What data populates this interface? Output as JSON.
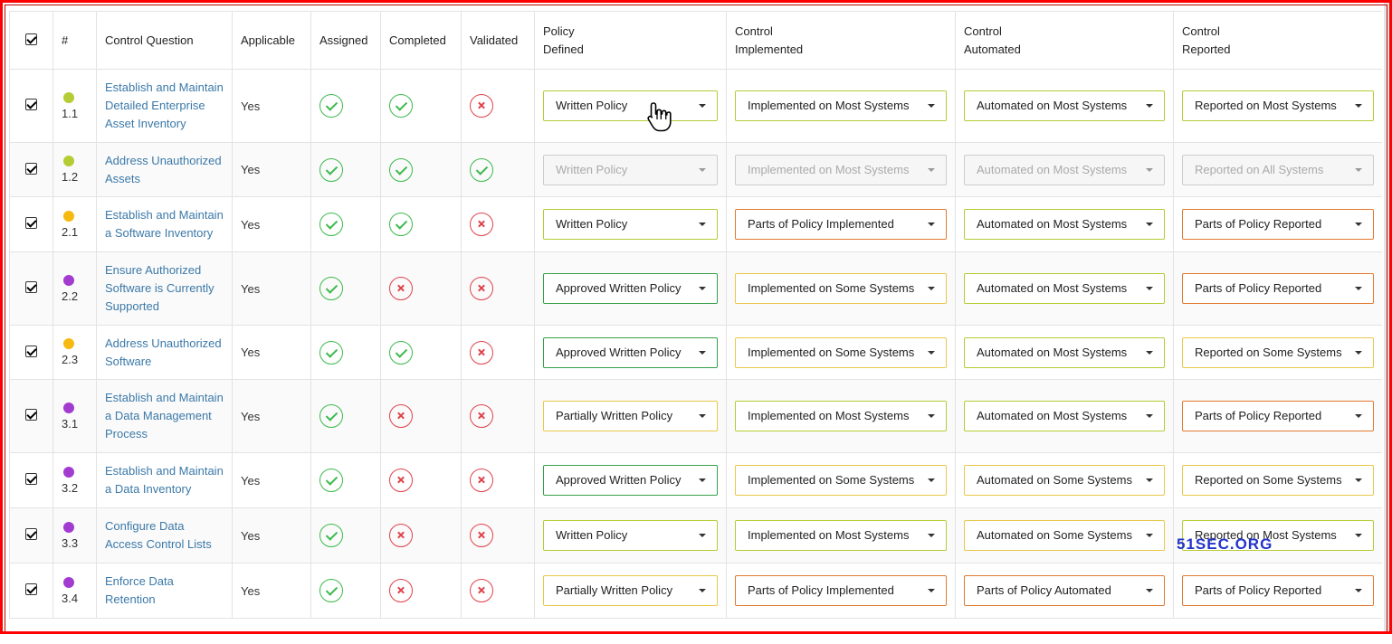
{
  "colors": {
    "green": "#3cba4c",
    "red": "#e0424b",
    "link": "#3b79a8",
    "border_green": "#35a049",
    "border_yellow": "#e8c84a",
    "border_orange": "#e07a30",
    "border_lime": "#b5cc34",
    "border_gray": "#cccccc",
    "dot_lime": "#b5cc34",
    "dot_yellow": "#f5b90f",
    "dot_purple": "#a23bd0"
  },
  "header": {
    "number": "#",
    "question": "Control Question",
    "applicable": "Applicable",
    "assigned": "Assigned",
    "completed": "Completed",
    "validated": "Validated",
    "policy_l1": "Policy",
    "policy_l2": "Defined",
    "implemented_l1": "Control",
    "implemented_l2": "Implemented",
    "automated_l1": "Control",
    "automated_l2": "Automated",
    "reported_l1": "Control",
    "reported_l2": "Reported"
  },
  "rows": [
    {
      "number": "1.1",
      "dot": "lime",
      "question": "Establish and Maintain Detailed Enterprise Asset Inventory",
      "applicable": "Yes",
      "assigned": "check",
      "completed": "check",
      "validated": "x",
      "disabled": false,
      "policy": {
        "value": "Written Policy",
        "border": "lime"
      },
      "implemented": {
        "value": "Implemented on Most Systems",
        "border": "lime"
      },
      "automated": {
        "value": "Automated on Most Systems",
        "border": "lime"
      },
      "reported": {
        "value": "Reported on Most Systems",
        "border": "lime"
      }
    },
    {
      "number": "1.2",
      "dot": "lime",
      "question": "Address Unauthorized Assets",
      "applicable": "Yes",
      "assigned": "check",
      "completed": "check",
      "validated": "check",
      "disabled": true,
      "policy": {
        "value": "Written Policy",
        "border": "gray"
      },
      "implemented": {
        "value": "Implemented on Most Systems",
        "border": "gray"
      },
      "automated": {
        "value": "Automated on Most Systems",
        "border": "gray"
      },
      "reported": {
        "value": "Reported on All Systems",
        "border": "gray"
      }
    },
    {
      "number": "2.1",
      "dot": "yellow",
      "question": "Establish and Maintain a Software Inventory",
      "applicable": "Yes",
      "assigned": "check",
      "completed": "check",
      "validated": "x",
      "disabled": false,
      "policy": {
        "value": "Written Policy",
        "border": "lime"
      },
      "implemented": {
        "value": "Parts of Policy Implemented",
        "border": "orange"
      },
      "automated": {
        "value": "Automated on Most Systems",
        "border": "lime"
      },
      "reported": {
        "value": "Parts of Policy Reported",
        "border": "orange"
      }
    },
    {
      "number": "2.2",
      "dot": "purple",
      "question": "Ensure Authorized Software is Currently Supported",
      "applicable": "Yes",
      "assigned": "check",
      "completed": "x",
      "validated": "x",
      "disabled": false,
      "policy": {
        "value": "Approved Written Policy",
        "border": "green"
      },
      "implemented": {
        "value": "Implemented on Some Systems",
        "border": "yellow"
      },
      "automated": {
        "value": "Automated on Most Systems",
        "border": "lime"
      },
      "reported": {
        "value": "Parts of Policy Reported",
        "border": "orange"
      }
    },
    {
      "number": "2.3",
      "dot": "yellow",
      "question": "Address Unauthorized Software",
      "applicable": "Yes",
      "assigned": "check",
      "completed": "check",
      "validated": "x",
      "disabled": false,
      "policy": {
        "value": "Approved Written Policy",
        "border": "green"
      },
      "implemented": {
        "value": "Implemented on Some Systems",
        "border": "yellow"
      },
      "automated": {
        "value": "Automated on Most Systems",
        "border": "lime"
      },
      "reported": {
        "value": "Reported on Some Systems",
        "border": "yellow"
      }
    },
    {
      "number": "3.1",
      "dot": "purple",
      "question": "Establish and Maintain a Data Management Process",
      "applicable": "Yes",
      "assigned": "check",
      "completed": "x",
      "validated": "x",
      "disabled": false,
      "policy": {
        "value": "Partially Written Policy",
        "border": "yellow"
      },
      "implemented": {
        "value": "Implemented on Most Systems",
        "border": "lime"
      },
      "automated": {
        "value": "Automated on Most Systems",
        "border": "lime"
      },
      "reported": {
        "value": "Parts of Policy Reported",
        "border": "orange"
      }
    },
    {
      "number": "3.2",
      "dot": "purple",
      "question": "Establish and Maintain a Data Inventory",
      "applicable": "Yes",
      "assigned": "check",
      "completed": "x",
      "validated": "x",
      "disabled": false,
      "policy": {
        "value": "Approved Written Policy",
        "border": "green"
      },
      "implemented": {
        "value": "Implemented on Some Systems",
        "border": "yellow"
      },
      "automated": {
        "value": "Automated on Some Systems",
        "border": "yellow"
      },
      "reported": {
        "value": "Reported on Some Systems",
        "border": "yellow"
      }
    },
    {
      "number": "3.3",
      "dot": "purple",
      "question": "Configure Data Access Control Lists",
      "applicable": "Yes",
      "assigned": "check",
      "completed": "x",
      "validated": "x",
      "disabled": false,
      "policy": {
        "value": "Written Policy",
        "border": "lime"
      },
      "implemented": {
        "value": "Implemented on Most Systems",
        "border": "lime"
      },
      "automated": {
        "value": "Automated on Some Systems",
        "border": "yellow"
      },
      "reported": {
        "value": "Reported on Most Systems",
        "border": "lime"
      }
    },
    {
      "number": "3.4",
      "dot": "purple",
      "question": "Enforce Data Retention",
      "applicable": "Yes",
      "assigned": "check",
      "completed": "x",
      "validated": "x",
      "disabled": false,
      "policy": {
        "value": "Partially Written Policy",
        "border": "yellow"
      },
      "implemented": {
        "value": "Parts of Policy Implemented",
        "border": "orange"
      },
      "automated": {
        "value": "Parts of Policy Automated",
        "border": "orange"
      },
      "reported": {
        "value": "Parts of Policy Reported",
        "border": "orange"
      }
    }
  ],
  "watermark": "51SEC.ORG"
}
